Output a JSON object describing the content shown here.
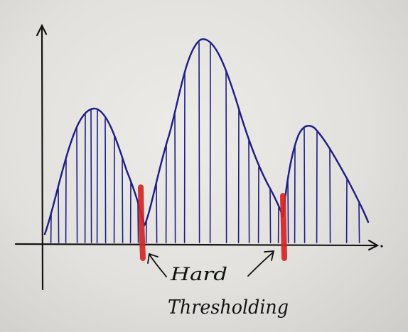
{
  "annotation": {
    "line1": "Hard",
    "line2": "Thresholding"
  },
  "colors": {
    "ink": "#1c1d86",
    "marker": "#d52424",
    "axis": "#141414",
    "text": "#111111"
  },
  "curve": {
    "shape": "three humps; hard thresholding cuts at the two valleys"
  }
}
